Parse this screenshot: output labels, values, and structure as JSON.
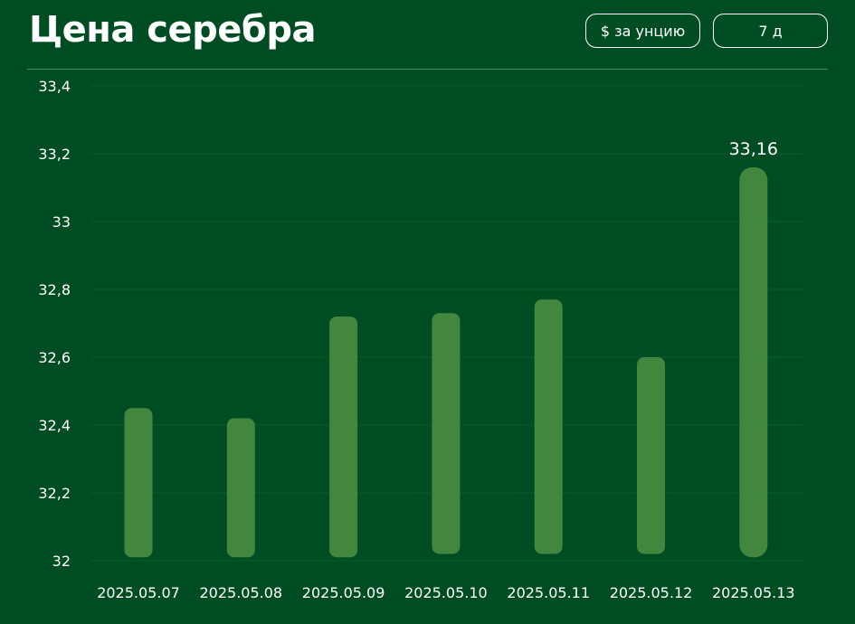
{
  "header": {
    "title": "Цена серебра",
    "unit_button": "$ за унцию",
    "period_button": "7 д"
  },
  "colors": {
    "background": "#004d23",
    "bar": "#43873f",
    "gridline": "#0a5a2c",
    "text": "#ffffff"
  },
  "chart_data": {
    "type": "bar",
    "title": "",
    "xlabel": "",
    "ylabel": "",
    "categories": [
      "2025.05.07",
      "2025.05.08",
      "2025.05.09",
      "2025.05.10",
      "2025.05.11",
      "2025.05.12",
      "2025.05.13"
    ],
    "series": [
      {
        "values": [
          32.45,
          32.42,
          32.72,
          32.73,
          32.77,
          32.6,
          33.16
        ],
        "base": [
          32.01,
          32.01,
          32.01,
          32.02,
          32.02,
          32.02,
          32.01
        ]
      }
    ],
    "ylim": [
      32,
      33.4
    ],
    "yticks": [
      32,
      32.2,
      32.4,
      32.6,
      32.8,
      33,
      33.2,
      33.4
    ],
    "ytick_labels": [
      "32",
      "32,2",
      "32,4",
      "32,6",
      "32,8",
      "33",
      "33,2",
      "33,4"
    ],
    "annotation": {
      "index": 6,
      "text": "33,16"
    },
    "grid": true,
    "legend": "none"
  }
}
